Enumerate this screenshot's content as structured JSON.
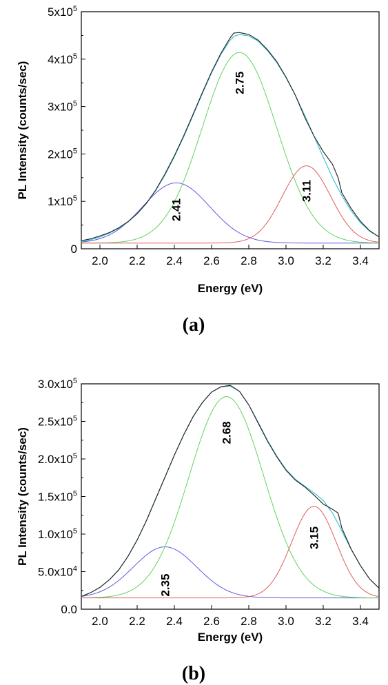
{
  "chart_data": [
    {
      "type": "line",
      "panel_label": "(a)",
      "xlabel": "Energy (eV)",
      "ylabel": "PL Intensity (counts/sec)",
      "xlim": [
        1.9,
        3.5
      ],
      "ylim": [
        0,
        500000
      ],
      "x_ticks": [
        {
          "value": 2.0,
          "label": "2.0"
        },
        {
          "value": 2.2,
          "label": "2.2"
        },
        {
          "value": 2.4,
          "label": "2.4"
        },
        {
          "value": 2.6,
          "label": "2.6"
        },
        {
          "value": 2.8,
          "label": "2.8"
        },
        {
          "value": 3.0,
          "label": "3.0"
        },
        {
          "value": 3.2,
          "label": "3.2"
        },
        {
          "value": 3.4,
          "label": "3.4"
        }
      ],
      "y_ticks": [
        {
          "value": 0,
          "label": "0"
        },
        {
          "value": 100000,
          "label": "1x10",
          "exp": "5"
        },
        {
          "value": 200000,
          "label": "2x10",
          "exp": "5"
        },
        {
          "value": 300000,
          "label": "3x10",
          "exp": "5"
        },
        {
          "value": 400000,
          "label": "4x10",
          "exp": "5"
        },
        {
          "value": 500000,
          "label": "5x10",
          "exp": "5"
        }
      ],
      "baseline": 12000,
      "series": [
        {
          "kind": "measured",
          "color": "#2a2a2a",
          "x": [
            1.9,
            1.95,
            2.0,
            2.05,
            2.1,
            2.15,
            2.2,
            2.25,
            2.3,
            2.35,
            2.4,
            2.45,
            2.5,
            2.55,
            2.6,
            2.65,
            2.7,
            2.72,
            2.75,
            2.8,
            2.85,
            2.9,
            2.95,
            3.0,
            3.05,
            3.1,
            3.15,
            3.2,
            3.25,
            3.28,
            3.3,
            3.35,
            3.4,
            3.45,
            3.5
          ],
          "values": [
            17000,
            21000,
            27000,
            34000,
            44000,
            57000,
            74000,
            96000,
            124000,
            158000,
            196000,
            238000,
            283000,
            329000,
            373000,
            412000,
            445000,
            455000,
            456000,
            452000,
            440000,
            420000,
            395000,
            362000,
            324000,
            278000,
            238000,
            205000,
            178000,
            150000,
            118000,
            85000,
            58000,
            38000,
            25000
          ]
        },
        {
          "kind": "fit-sum",
          "color": "#3ec6d6",
          "x": [
            1.9,
            1.95,
            2.0,
            2.05,
            2.1,
            2.15,
            2.2,
            2.25,
            2.3,
            2.35,
            2.4,
            2.45,
            2.5,
            2.55,
            2.6,
            2.65,
            2.7,
            2.72,
            2.75,
            2.8,
            2.85,
            2.9,
            2.95,
            3.0,
            3.05,
            3.1,
            3.15,
            3.2,
            3.25,
            3.28,
            3.3,
            3.35,
            3.4,
            3.45,
            3.5
          ],
          "values": [
            15000,
            19000,
            25000,
            33000,
            43000,
            56000,
            74000,
            96000,
            123000,
            156000,
            194000,
            236000,
            281000,
            327000,
            371000,
            410000,
            440000,
            448000,
            452000,
            449000,
            438000,
            418000,
            393000,
            361000,
            324000,
            282000,
            238000,
            193000,
            150000,
            127000,
            112000,
            80000,
            55000,
            37000,
            25000
          ]
        },
        {
          "kind": "component",
          "center": 2.41,
          "color": "#5b5bdc",
          "amplitude": 127000,
          "sigma": 0.18
        },
        {
          "kind": "component",
          "center": 2.75,
          "color": "#5fd35f",
          "amplitude": 402000,
          "sigma": 0.2
        },
        {
          "kind": "component",
          "center": 3.11,
          "color": "#e05a5a",
          "amplitude": 163000,
          "sigma": 0.13
        }
      ],
      "annotations": [
        {
          "text": "2.41",
          "x": 2.41,
          "y": 82000
        },
        {
          "text": "2.75",
          "x": 2.75,
          "y": 350000
        },
        {
          "text": "3.11",
          "x": 3.11,
          "y": 122000
        }
      ]
    },
    {
      "type": "line",
      "panel_label": "(b)",
      "xlabel": "Energy (eV)",
      "ylabel": "PL Intensity (counts/sec)",
      "xlim": [
        1.9,
        3.5
      ],
      "ylim": [
        0,
        300000
      ],
      "x_ticks": [
        {
          "value": 2.0,
          "label": "2.0"
        },
        {
          "value": 2.2,
          "label": "2.2"
        },
        {
          "value": 2.4,
          "label": "2.4"
        },
        {
          "value": 2.6,
          "label": "2.6"
        },
        {
          "value": 2.8,
          "label": "2.8"
        },
        {
          "value": 3.0,
          "label": "3.0"
        },
        {
          "value": 3.2,
          "label": "3.2"
        },
        {
          "value": 3.4,
          "label": "3.4"
        }
      ],
      "y_ticks": [
        {
          "value": 0,
          "label": "0.0"
        },
        {
          "value": 50000,
          "label": "5.0x10",
          "exp": "4"
        },
        {
          "value": 100000,
          "label": "1.0x10",
          "exp": "5"
        },
        {
          "value": 150000,
          "label": "1.5x10",
          "exp": "5"
        },
        {
          "value": 200000,
          "label": "2.0x10",
          "exp": "5"
        },
        {
          "value": 250000,
          "label": "2.5x10",
          "exp": "5"
        },
        {
          "value": 300000,
          "label": "3.0x10",
          "exp": "5"
        }
      ],
      "baseline": 15000,
      "series": [
        {
          "kind": "measured",
          "color": "#2a2a2a",
          "x": [
            1.9,
            1.95,
            2.0,
            2.05,
            2.1,
            2.15,
            2.2,
            2.25,
            2.3,
            2.35,
            2.4,
            2.45,
            2.5,
            2.55,
            2.6,
            2.65,
            2.7,
            2.75,
            2.8,
            2.85,
            2.9,
            2.95,
            3.0,
            3.05,
            3.1,
            3.15,
            3.2,
            3.25,
            3.28,
            3.3,
            3.35,
            3.4,
            3.45,
            3.5
          ],
          "values": [
            17000,
            22000,
            29000,
            39000,
            52000,
            70000,
            92000,
            118000,
            147000,
            176000,
            205000,
            232000,
            256000,
            275000,
            289000,
            296000,
            298000,
            290000,
            272000,
            248000,
            224000,
            203000,
            185000,
            172000,
            163000,
            152000,
            140000,
            133000,
            128000,
            108000,
            80000,
            58000,
            40000,
            28000
          ]
        },
        {
          "kind": "fit-sum",
          "color": "#3ec6d6",
          "x": [
            1.9,
            1.95,
            2.0,
            2.05,
            2.1,
            2.15,
            2.2,
            2.25,
            2.3,
            2.35,
            2.4,
            2.45,
            2.5,
            2.55,
            2.6,
            2.65,
            2.7,
            2.75,
            2.8,
            2.85,
            2.9,
            2.95,
            3.0,
            3.05,
            3.1,
            3.15,
            3.2,
            3.25,
            3.28,
            3.3,
            3.35,
            3.4,
            3.45,
            3.5
          ],
          "values": [
            17000,
            22000,
            29000,
            39000,
            52000,
            70000,
            92000,
            118000,
            147000,
            176000,
            205000,
            232000,
            256000,
            275000,
            289000,
            296000,
            297000,
            290000,
            272000,
            249000,
            225000,
            204000,
            186000,
            173000,
            164000,
            155000,
            145000,
            128000,
            114000,
            104000,
            80000,
            58000,
            40000,
            28000
          ]
        },
        {
          "kind": "component",
          "center": 2.35,
          "color": "#5b5bdc",
          "amplitude": 68000,
          "sigma": 0.17
        },
        {
          "kind": "component",
          "center": 2.68,
          "color": "#5fd35f",
          "amplitude": 268000,
          "sigma": 0.2
        },
        {
          "kind": "component",
          "center": 3.15,
          "color": "#e05a5a",
          "amplitude": 122000,
          "sigma": 0.12
        }
      ],
      "annotations": [
        {
          "text": "2.35",
          "x": 2.35,
          "y": 32000
        },
        {
          "text": "2.68",
          "x": 2.68,
          "y": 235000
        },
        {
          "text": "3.15",
          "x": 3.15,
          "y": 95000
        }
      ]
    }
  ]
}
